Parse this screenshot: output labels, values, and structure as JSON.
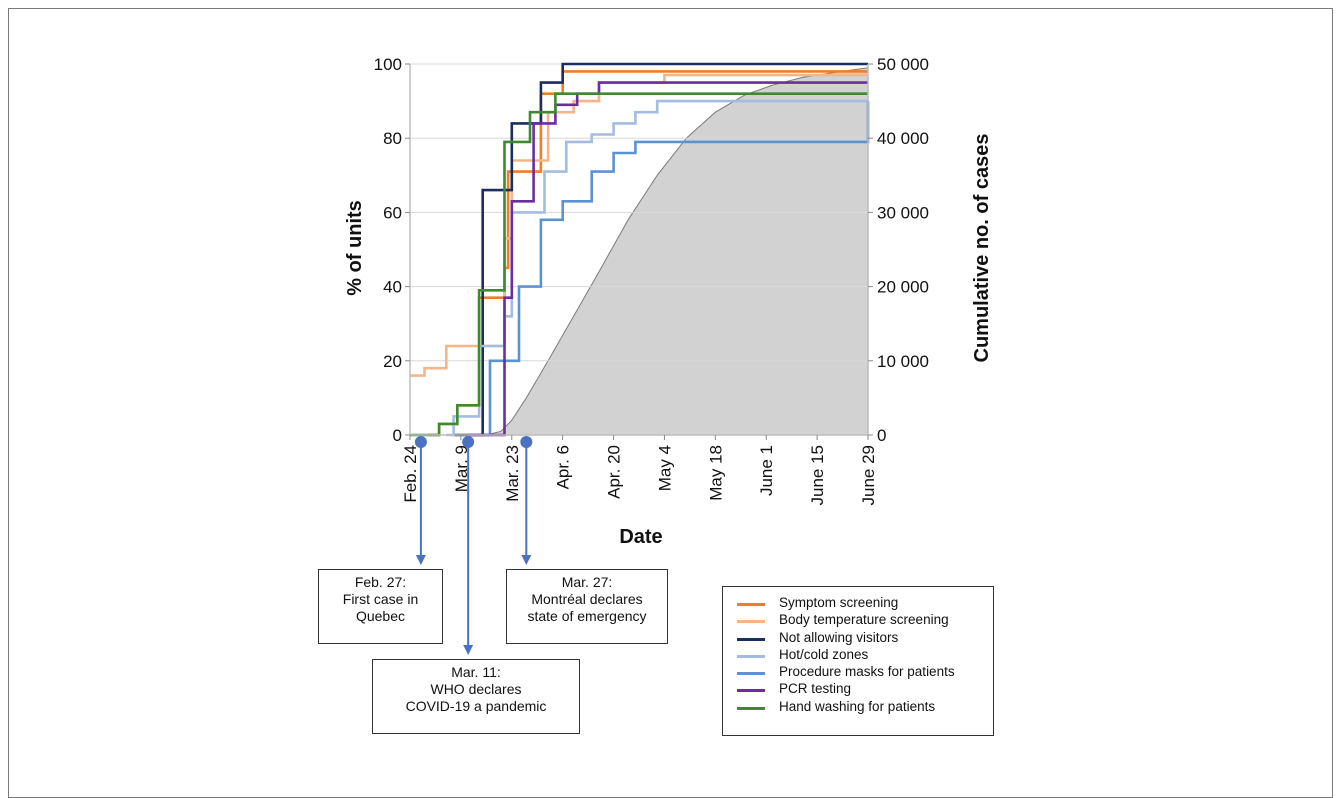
{
  "chart_data": {
    "type": "line",
    "xlabel": "Date",
    "ylabel": "% of units",
    "y2label": "Cumulative no. of cases",
    "ylim": [
      0,
      100
    ],
    "y2lim": [
      0,
      50000
    ],
    "yticks": [
      "0",
      "20",
      "40",
      "60",
      "80",
      "100"
    ],
    "y2ticks": [
      "0",
      "10 000",
      "20 000",
      "30 000",
      "40 000",
      "50 000"
    ],
    "xticks": [
      "Feb. 24",
      "Mar. 9",
      "Mar. 23",
      "Apr. 6",
      "Apr. 20",
      "May 4",
      "May 18",
      "June 1",
      "June 15",
      "June 29"
    ],
    "x_domain_days": [
      0,
      126
    ],
    "series": [
      {
        "name": "Symptom screening",
        "color": "#f07d2a",
        "points": [
          [
            5,
            0
          ],
          [
            8,
            3
          ],
          [
            13,
            8
          ],
          [
            19,
            37
          ],
          [
            26,
            45
          ],
          [
            27,
            71
          ],
          [
            36,
            92
          ],
          [
            42,
            98
          ],
          [
            126,
            98
          ]
        ]
      },
      {
        "name": "Body temperature screening",
        "color": "#f5b588",
        "points": [
          [
            0,
            16
          ],
          [
            4,
            18
          ],
          [
            10,
            24
          ],
          [
            20,
            24
          ],
          [
            26,
            53
          ],
          [
            28,
            74
          ],
          [
            38,
            87
          ],
          [
            45,
            90
          ],
          [
            52,
            95
          ],
          [
            70,
            97
          ],
          [
            126,
            97
          ]
        ]
      },
      {
        "name": "Not allowing visitors",
        "color": "#1c2d5e",
        "points": [
          [
            12,
            0
          ],
          [
            20,
            66
          ],
          [
            28,
            84
          ],
          [
            36,
            95
          ],
          [
            42,
            100
          ],
          [
            126,
            100
          ]
        ]
      },
      {
        "name": "Hot/cold zones",
        "color": "#a3bce0",
        "points": [
          [
            10,
            0
          ],
          [
            12,
            5
          ],
          [
            16,
            5
          ],
          [
            19,
            24
          ],
          [
            26,
            32
          ],
          [
            28,
            60
          ],
          [
            37,
            71
          ],
          [
            43,
            79
          ],
          [
            50,
            81
          ],
          [
            56,
            84
          ],
          [
            62,
            87
          ],
          [
            68,
            90
          ],
          [
            126,
            90
          ]
        ]
      },
      {
        "name": "Procedure masks for patients",
        "color": "#5b93d2",
        "points": [
          [
            20,
            0
          ],
          [
            22,
            20
          ],
          [
            26,
            20
          ],
          [
            30,
            40
          ],
          [
            36,
            58
          ],
          [
            42,
            63
          ],
          [
            50,
            71
          ],
          [
            56,
            76
          ],
          [
            62,
            79
          ],
          [
            126,
            79
          ],
          [
            126,
            90
          ]
        ]
      },
      {
        "name": "PCR testing",
        "color": "#6a2f9e",
        "points": [
          [
            16,
            0
          ],
          [
            22,
            0
          ],
          [
            26,
            37
          ],
          [
            28,
            63
          ],
          [
            34,
            84
          ],
          [
            40,
            89
          ],
          [
            46,
            92
          ],
          [
            52,
            95
          ],
          [
            126,
            95
          ]
        ]
      },
      {
        "name": "Hand washing for patients",
        "color": "#3e8a2e",
        "points": [
          [
            0,
            0
          ],
          [
            6,
            0
          ],
          [
            8,
            3
          ],
          [
            13,
            8
          ],
          [
            19,
            39
          ],
          [
            26,
            79
          ],
          [
            33,
            87
          ],
          [
            40,
            92
          ],
          [
            126,
            92
          ]
        ]
      }
    ],
    "cases_series": {
      "name": "Cumulative no. of cases",
      "fill": "#d2d2d2",
      "points": [
        [
          21,
          0
        ],
        [
          25,
          500
        ],
        [
          28,
          2000
        ],
        [
          32,
          5000
        ],
        [
          38,
          10000
        ],
        [
          45,
          16000
        ],
        [
          52,
          22000
        ],
        [
          60,
          29000
        ],
        [
          68,
          35000
        ],
        [
          76,
          40000
        ],
        [
          84,
          43500
        ],
        [
          92,
          45800
        ],
        [
          100,
          47200
        ],
        [
          108,
          48200
        ],
        [
          116,
          48800
        ],
        [
          126,
          49500
        ]
      ]
    },
    "legend": [
      "Symptom screening",
      "Body temperature screening",
      "Not allowing visitors",
      "Hot/cold zones",
      "Procedure masks for patients",
      "PCR testing",
      "Hand washing for patients"
    ],
    "legend_position": "bottom-right",
    "grid": "horizontal",
    "events": [
      {
        "day": 3,
        "box": [
          "Feb. 27:",
          "First case in",
          "Quebec"
        ]
      },
      {
        "day": 16,
        "box": [
          "Mar. 11:",
          "WHO declares",
          "COVID-19 a pandemic"
        ]
      },
      {
        "day": 32,
        "box": [
          "Mar. 27:",
          "Montréal declares",
          "state of emergency"
        ]
      }
    ]
  }
}
